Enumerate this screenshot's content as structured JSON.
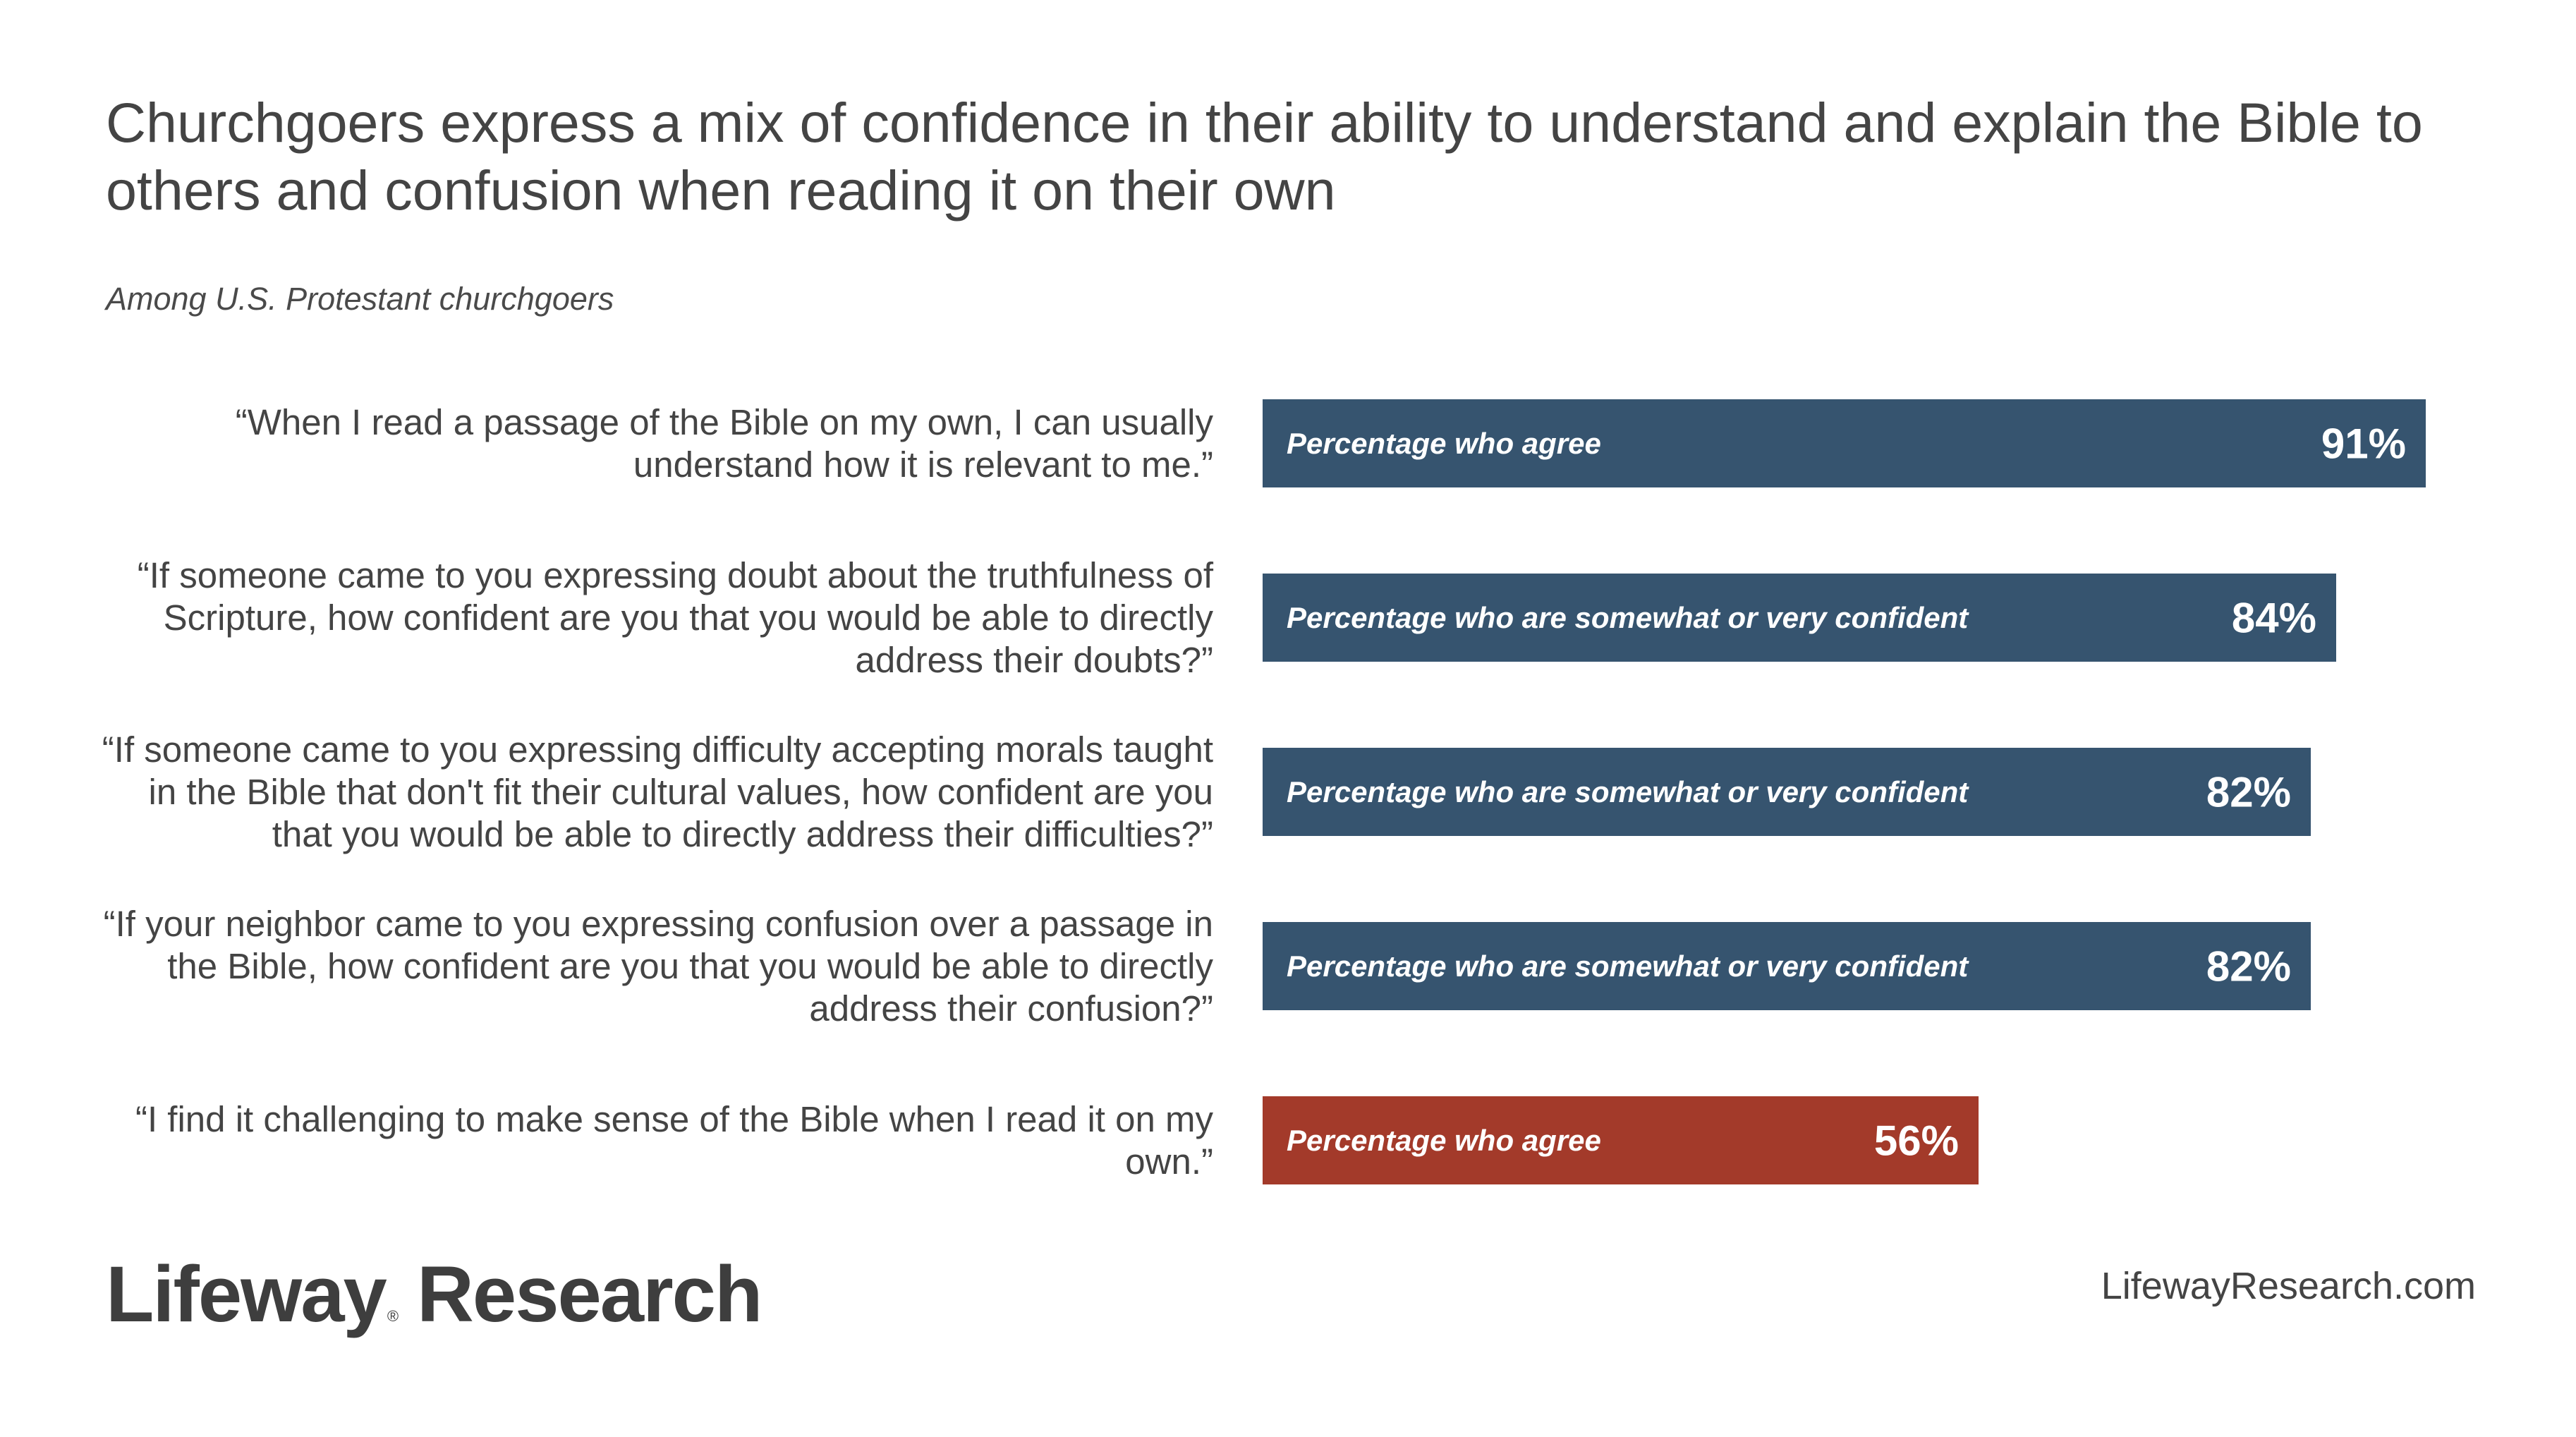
{
  "title": "Churchgoers express a mix of confidence in their ability to understand and explain the Bible to others and confusion when reading it on their own",
  "subtitle": "Among U.S. Protestant churchgoers",
  "colors": {
    "blue_bar": "#36546f",
    "red_bar": "#a33a2a",
    "text": "#444444"
  },
  "chart_data": {
    "type": "bar",
    "orientation": "horizontal",
    "unit": "%",
    "xlim": [
      0,
      100
    ],
    "grid": false,
    "items": [
      {
        "statement": "“When I read a passage of the Bible on my own, I can usually understand how it is relevant to me.”",
        "measure": "Percentage who agree",
        "value": 91,
        "value_label": "91%",
        "color": "#36546f"
      },
      {
        "statement": "“If someone came to you expressing doubt about the truthfulness of Scripture, how confident are you that you would be able to directly address their doubts?”",
        "measure": "Percentage who are somewhat or very confident",
        "value": 84,
        "value_label": "84%",
        "color": "#36546f"
      },
      {
        "statement": "“If someone came to you expressing difficulty accepting morals taught in the Bible that don't fit their cultural values, how confident are you that you would be able to directly address their difficulties?”",
        "measure": "Percentage who are somewhat or very confident",
        "value": 82,
        "value_label": "82%",
        "color": "#36546f"
      },
      {
        "statement": "“If your neighbor came to you expressing confusion over a passage in the Bible, how confident are you that you would be able to directly address their confusion?”",
        "measure": "Percentage who are somewhat or very confident",
        "value": 82,
        "value_label": "82%",
        "color": "#36546f"
      },
      {
        "statement": "“I find it challenging to  make sense of the Bible when I read it on my own.”",
        "measure": "Percentage who agree",
        "value": 56,
        "value_label": "56%",
        "color": "#a33a2a"
      }
    ]
  },
  "footer": {
    "logo_text_1": "Lifeway",
    "logo_reg": "®",
    "logo_text_2": "Research",
    "website": "LifewayResearch.com"
  }
}
